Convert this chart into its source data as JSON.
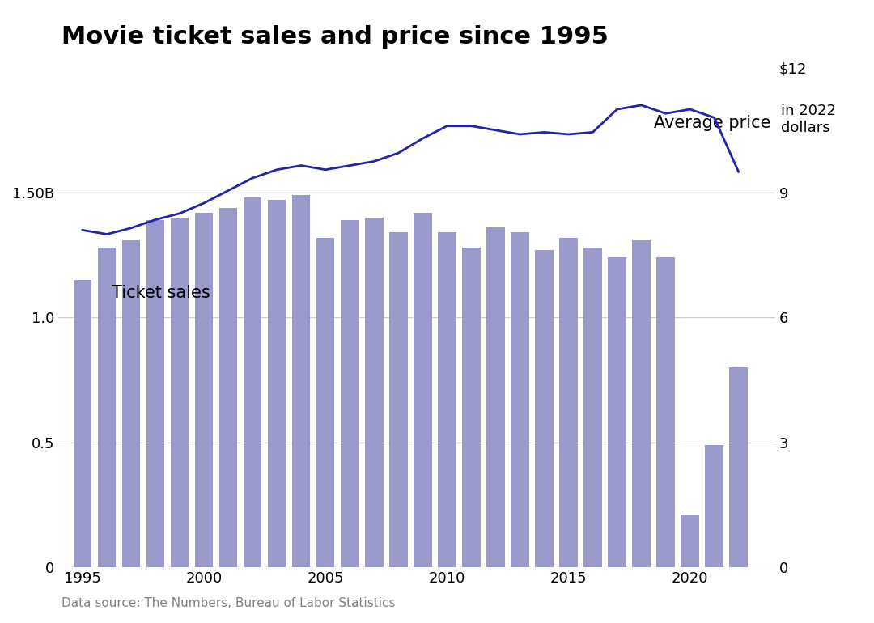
{
  "title": "Movie ticket sales and price since 1995",
  "source": "Data source: The Numbers, Bureau of Labor Statistics",
  "years": [
    1995,
    1996,
    1997,
    1998,
    1999,
    2000,
    2001,
    2002,
    2003,
    2004,
    2005,
    2006,
    2007,
    2008,
    2009,
    2010,
    2011,
    2012,
    2013,
    2014,
    2015,
    2016,
    2017,
    2018,
    2019,
    2020,
    2021,
    2022
  ],
  "ticket_sales_billions": [
    1.15,
    1.28,
    1.31,
    1.39,
    1.4,
    1.42,
    1.44,
    1.48,
    1.47,
    1.49,
    1.32,
    1.39,
    1.4,
    1.34,
    1.42,
    1.34,
    1.28,
    1.36,
    1.34,
    1.27,
    1.32,
    1.28,
    1.24,
    1.31,
    1.24,
    0.21,
    0.49,
    0.8
  ],
  "avg_price_2022_dollars": [
    8.1,
    8.0,
    8.15,
    8.35,
    8.5,
    8.75,
    9.05,
    9.35,
    9.55,
    9.65,
    9.55,
    9.65,
    9.75,
    9.95,
    10.3,
    10.6,
    10.6,
    10.5,
    10.4,
    10.45,
    10.4,
    10.45,
    11.0,
    11.1,
    10.9,
    11.0,
    10.8,
    9.5
  ],
  "bar_color": "#9999cc",
  "line_color": "#2222aa",
  "background_color": "#ffffff",
  "grid_color": "#cccccc",
  "left_ylim": [
    0,
    2.0
  ],
  "right_ylim": [
    0,
    12
  ],
  "left_yticks": [
    0,
    0.5,
    1.0,
    1.5
  ],
  "left_yticklabels": [
    "0",
    "0.5",
    "1.0",
    "1.50B"
  ],
  "right_yticks": [
    0,
    3,
    6,
    9,
    12
  ],
  "right_yticklabels": [
    "0",
    "3",
    "6",
    "9",
    "$12"
  ],
  "right_label_extra": "in 2022\ndollars",
  "title_fontsize": 22,
  "label_fontsize": 15,
  "tick_fontsize": 13,
  "source_fontsize": 11,
  "annotation_avg_price": "Average price",
  "annotation_ticket_sales": "Ticket sales"
}
